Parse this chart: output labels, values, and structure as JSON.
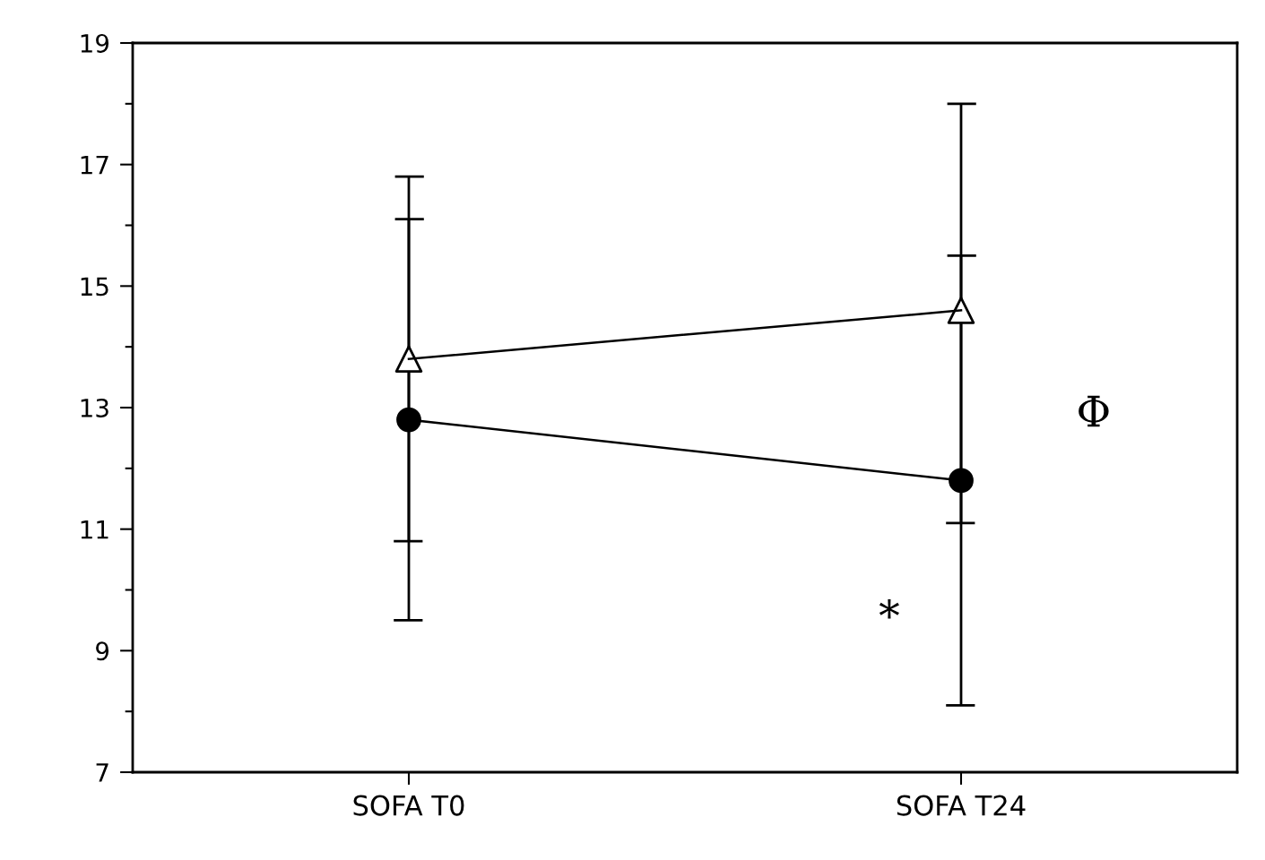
{
  "chart_data": {
    "type": "line",
    "categories": [
      "SOFA T0",
      "SOFA T24"
    ],
    "series": [
      {
        "color": "#000000",
        "marker": "triangle",
        "values": [
          13.8,
          14.6
        ],
        "errors": [
          [
            10.8,
            16.1
          ],
          [
            11.1,
            15.5
          ]
        ]
      },
      {
        "color": "#000000",
        "marker": "circle",
        "values": [
          12.8,
          11.8
        ],
        "errors": [
          [
            9.5,
            16.8
          ],
          [
            8.1,
            18.0
          ]
        ]
      }
    ],
    "ylim": [
      7,
      19
    ],
    "yticks": [
      7,
      9,
      11,
      13,
      15,
      17,
      19
    ],
    "grid": false,
    "annotations": [
      "*",
      "Φ"
    ]
  }
}
